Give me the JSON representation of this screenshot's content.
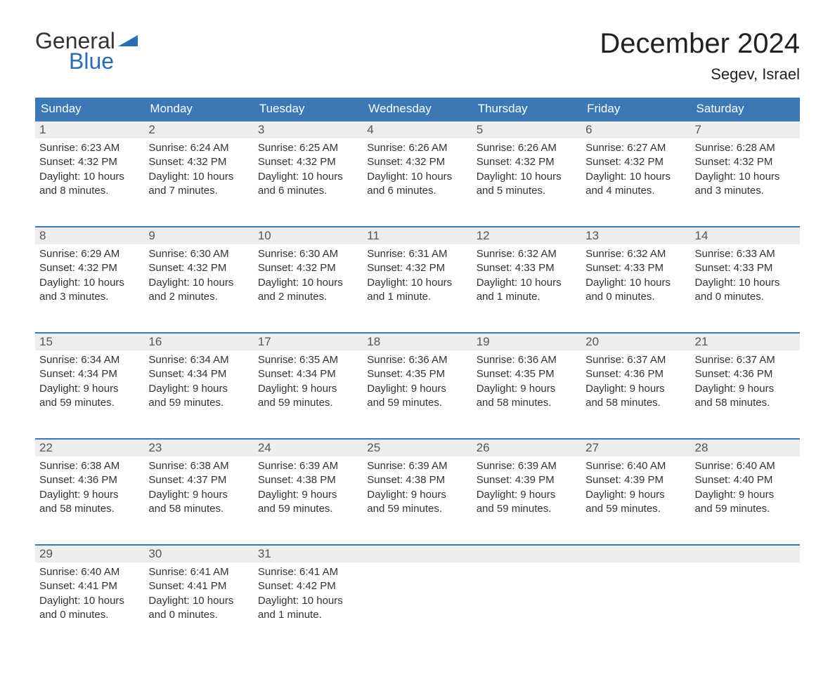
{
  "logo": {
    "text_general": "General",
    "text_blue": "Blue",
    "flag_color": "#2a6db0"
  },
  "title": "December 2024",
  "location": "Segev, Israel",
  "day_headers": [
    "Sunday",
    "Monday",
    "Tuesday",
    "Wednesday",
    "Thursday",
    "Friday",
    "Saturday"
  ],
  "weeks": [
    [
      {
        "num": "1",
        "sunrise": "Sunrise: 6:23 AM",
        "sunset": "Sunset: 4:32 PM",
        "daylight1": "Daylight: 10 hours",
        "daylight2": "and 8 minutes."
      },
      {
        "num": "2",
        "sunrise": "Sunrise: 6:24 AM",
        "sunset": "Sunset: 4:32 PM",
        "daylight1": "Daylight: 10 hours",
        "daylight2": "and 7 minutes."
      },
      {
        "num": "3",
        "sunrise": "Sunrise: 6:25 AM",
        "sunset": "Sunset: 4:32 PM",
        "daylight1": "Daylight: 10 hours",
        "daylight2": "and 6 minutes."
      },
      {
        "num": "4",
        "sunrise": "Sunrise: 6:26 AM",
        "sunset": "Sunset: 4:32 PM",
        "daylight1": "Daylight: 10 hours",
        "daylight2": "and 6 minutes."
      },
      {
        "num": "5",
        "sunrise": "Sunrise: 6:26 AM",
        "sunset": "Sunset: 4:32 PM",
        "daylight1": "Daylight: 10 hours",
        "daylight2": "and 5 minutes."
      },
      {
        "num": "6",
        "sunrise": "Sunrise: 6:27 AM",
        "sunset": "Sunset: 4:32 PM",
        "daylight1": "Daylight: 10 hours",
        "daylight2": "and 4 minutes."
      },
      {
        "num": "7",
        "sunrise": "Sunrise: 6:28 AM",
        "sunset": "Sunset: 4:32 PM",
        "daylight1": "Daylight: 10 hours",
        "daylight2": "and 3 minutes."
      }
    ],
    [
      {
        "num": "8",
        "sunrise": "Sunrise: 6:29 AM",
        "sunset": "Sunset: 4:32 PM",
        "daylight1": "Daylight: 10 hours",
        "daylight2": "and 3 minutes."
      },
      {
        "num": "9",
        "sunrise": "Sunrise: 6:30 AM",
        "sunset": "Sunset: 4:32 PM",
        "daylight1": "Daylight: 10 hours",
        "daylight2": "and 2 minutes."
      },
      {
        "num": "10",
        "sunrise": "Sunrise: 6:30 AM",
        "sunset": "Sunset: 4:32 PM",
        "daylight1": "Daylight: 10 hours",
        "daylight2": "and 2 minutes."
      },
      {
        "num": "11",
        "sunrise": "Sunrise: 6:31 AM",
        "sunset": "Sunset: 4:32 PM",
        "daylight1": "Daylight: 10 hours",
        "daylight2": "and 1 minute."
      },
      {
        "num": "12",
        "sunrise": "Sunrise: 6:32 AM",
        "sunset": "Sunset: 4:33 PM",
        "daylight1": "Daylight: 10 hours",
        "daylight2": "and 1 minute."
      },
      {
        "num": "13",
        "sunrise": "Sunrise: 6:32 AM",
        "sunset": "Sunset: 4:33 PM",
        "daylight1": "Daylight: 10 hours",
        "daylight2": "and 0 minutes."
      },
      {
        "num": "14",
        "sunrise": "Sunrise: 6:33 AM",
        "sunset": "Sunset: 4:33 PM",
        "daylight1": "Daylight: 10 hours",
        "daylight2": "and 0 minutes."
      }
    ],
    [
      {
        "num": "15",
        "sunrise": "Sunrise: 6:34 AM",
        "sunset": "Sunset: 4:34 PM",
        "daylight1": "Daylight: 9 hours",
        "daylight2": "and 59 minutes."
      },
      {
        "num": "16",
        "sunrise": "Sunrise: 6:34 AM",
        "sunset": "Sunset: 4:34 PM",
        "daylight1": "Daylight: 9 hours",
        "daylight2": "and 59 minutes."
      },
      {
        "num": "17",
        "sunrise": "Sunrise: 6:35 AM",
        "sunset": "Sunset: 4:34 PM",
        "daylight1": "Daylight: 9 hours",
        "daylight2": "and 59 minutes."
      },
      {
        "num": "18",
        "sunrise": "Sunrise: 6:36 AM",
        "sunset": "Sunset: 4:35 PM",
        "daylight1": "Daylight: 9 hours",
        "daylight2": "and 59 minutes."
      },
      {
        "num": "19",
        "sunrise": "Sunrise: 6:36 AM",
        "sunset": "Sunset: 4:35 PM",
        "daylight1": "Daylight: 9 hours",
        "daylight2": "and 58 minutes."
      },
      {
        "num": "20",
        "sunrise": "Sunrise: 6:37 AM",
        "sunset": "Sunset: 4:36 PM",
        "daylight1": "Daylight: 9 hours",
        "daylight2": "and 58 minutes."
      },
      {
        "num": "21",
        "sunrise": "Sunrise: 6:37 AM",
        "sunset": "Sunset: 4:36 PM",
        "daylight1": "Daylight: 9 hours",
        "daylight2": "and 58 minutes."
      }
    ],
    [
      {
        "num": "22",
        "sunrise": "Sunrise: 6:38 AM",
        "sunset": "Sunset: 4:36 PM",
        "daylight1": "Daylight: 9 hours",
        "daylight2": "and 58 minutes."
      },
      {
        "num": "23",
        "sunrise": "Sunrise: 6:38 AM",
        "sunset": "Sunset: 4:37 PM",
        "daylight1": "Daylight: 9 hours",
        "daylight2": "and 58 minutes."
      },
      {
        "num": "24",
        "sunrise": "Sunrise: 6:39 AM",
        "sunset": "Sunset: 4:38 PM",
        "daylight1": "Daylight: 9 hours",
        "daylight2": "and 59 minutes."
      },
      {
        "num": "25",
        "sunrise": "Sunrise: 6:39 AM",
        "sunset": "Sunset: 4:38 PM",
        "daylight1": "Daylight: 9 hours",
        "daylight2": "and 59 minutes."
      },
      {
        "num": "26",
        "sunrise": "Sunrise: 6:39 AM",
        "sunset": "Sunset: 4:39 PM",
        "daylight1": "Daylight: 9 hours",
        "daylight2": "and 59 minutes."
      },
      {
        "num": "27",
        "sunrise": "Sunrise: 6:40 AM",
        "sunset": "Sunset: 4:39 PM",
        "daylight1": "Daylight: 9 hours",
        "daylight2": "and 59 minutes."
      },
      {
        "num": "28",
        "sunrise": "Sunrise: 6:40 AM",
        "sunset": "Sunset: 4:40 PM",
        "daylight1": "Daylight: 9 hours",
        "daylight2": "and 59 minutes."
      }
    ],
    [
      {
        "num": "29",
        "sunrise": "Sunrise: 6:40 AM",
        "sunset": "Sunset: 4:41 PM",
        "daylight1": "Daylight: 10 hours",
        "daylight2": "and 0 minutes."
      },
      {
        "num": "30",
        "sunrise": "Sunrise: 6:41 AM",
        "sunset": "Sunset: 4:41 PM",
        "daylight1": "Daylight: 10 hours",
        "daylight2": "and 0 minutes."
      },
      {
        "num": "31",
        "sunrise": "Sunrise: 6:41 AM",
        "sunset": "Sunset: 4:42 PM",
        "daylight1": "Daylight: 10 hours",
        "daylight2": "and 1 minute."
      },
      null,
      null,
      null,
      null
    ]
  ],
  "style": {
    "header_bg": "#3b78b5",
    "header_fg": "#ffffff",
    "daynum_bg": "#ededed",
    "border_color": "#3b78b5",
    "text_color": "#333333"
  }
}
